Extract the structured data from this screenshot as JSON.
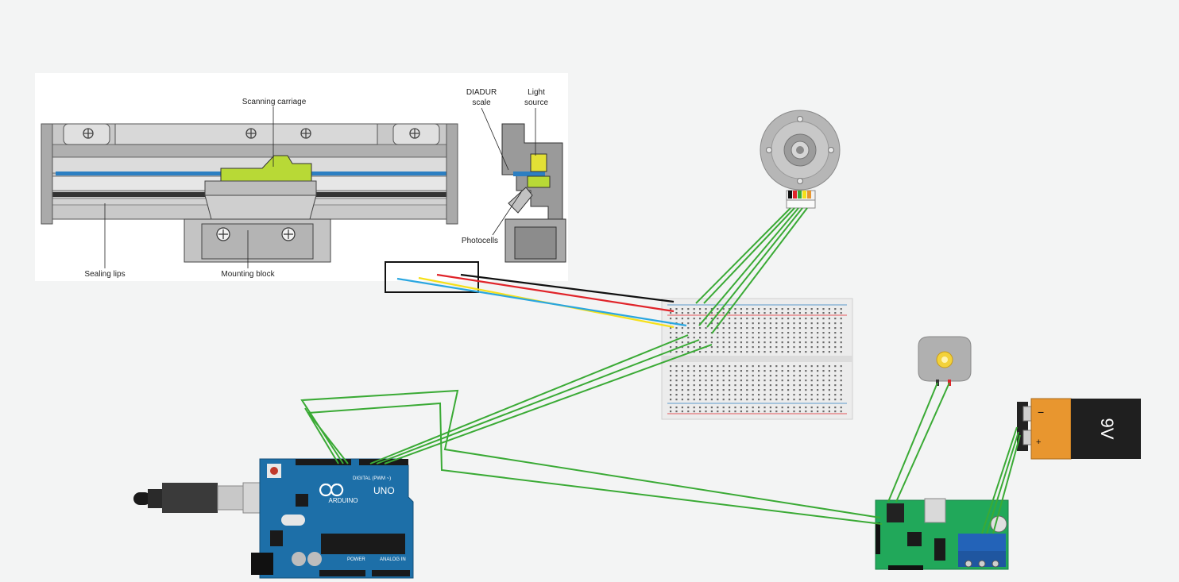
{
  "encoder_diagram": {
    "labels": {
      "scanning_carriage": "Scanning carriage",
      "diadur_scale_line1": "DIADUR",
      "diadur_scale_line2": "scale",
      "light_source_line1": "Light",
      "light_source_line2": "source",
      "photocells": "Photocells",
      "sealing_lips": "Sealing lips",
      "mounting_block": "Mounting block"
    }
  },
  "arduino": {
    "brand": "ARDUINO",
    "model": "UNO",
    "digital_label": "DIGITAL (PWM ~)",
    "power_label": "POWER",
    "analog_label": "ANALOG IN"
  },
  "battery": {
    "label": "9V",
    "minus": "−",
    "plus": "+"
  },
  "colors": {
    "background": "#f3f4f4",
    "green_wire": "#3aaa35",
    "red_wire": "#e0242a",
    "black_wire": "#111111",
    "yellow_wire": "#f5e01a",
    "blue_wire": "#2aa6e0",
    "arduino_blue": "#1d6fa8",
    "driver_green": "#21a85a",
    "battery_orange": "#e8962f",
    "encoder_yellow": "#b8d936"
  }
}
